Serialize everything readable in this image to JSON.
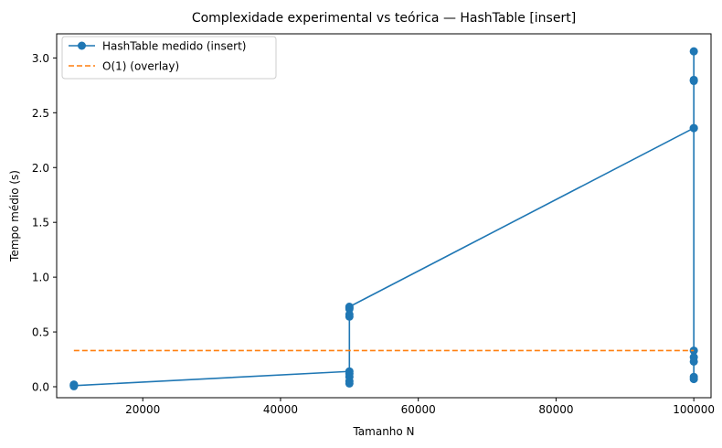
{
  "chart_data": {
    "type": "line",
    "title": "Complexidade experimental vs teórica — HashTable [insert]",
    "xlabel": "Tamanho N",
    "ylabel": "Tempo médio (s)",
    "xlim": [
      7500,
      102500
    ],
    "ylim": [
      -0.1,
      3.22
    ],
    "xticks": [
      20000,
      40000,
      60000,
      80000,
      100000
    ],
    "xtick_labels": [
      "20000",
      "40000",
      "60000",
      "80000",
      "100000"
    ],
    "yticks": [
      0.0,
      0.5,
      1.0,
      1.5,
      2.0,
      2.5,
      3.0
    ],
    "ytick_labels": [
      "0.0",
      "0.5",
      "1.0",
      "1.5",
      "2.0",
      "2.5",
      "3.0"
    ],
    "grid": false,
    "legend_position": "upper-left",
    "series": [
      {
        "name": "HashTable medido (insert)",
        "color": "#1f77b4",
        "style": "solid-with-markers",
        "points": [
          [
            10000,
            0.005
          ],
          [
            10000,
            0.02
          ],
          [
            10000,
            0.01
          ],
          [
            10000,
            0.015
          ],
          [
            10000,
            0.01
          ],
          [
            50000,
            0.14
          ],
          [
            50000,
            0.12
          ],
          [
            50000,
            0.05
          ],
          [
            50000,
            0.03
          ],
          [
            50000,
            0.09
          ],
          [
            50000,
            0.64
          ],
          [
            50000,
            0.72
          ],
          [
            50000,
            0.71
          ],
          [
            50000,
            0.66
          ],
          [
            50000,
            0.73
          ],
          [
            100000,
            2.36
          ],
          [
            100000,
            2.8
          ],
          [
            100000,
            3.06
          ],
          [
            100000,
            2.79
          ],
          [
            100000,
            2.36
          ],
          [
            100000,
            0.33
          ],
          [
            100000,
            0.27
          ],
          [
            100000,
            0.23
          ],
          [
            100000,
            0.09
          ],
          [
            100000,
            0.07
          ]
        ]
      },
      {
        "name": "O(1) (overlay)",
        "color": "#ff7f0e",
        "style": "dashed",
        "points": [
          [
            10000,
            0.33
          ],
          [
            100000,
            0.33
          ]
        ]
      }
    ]
  }
}
